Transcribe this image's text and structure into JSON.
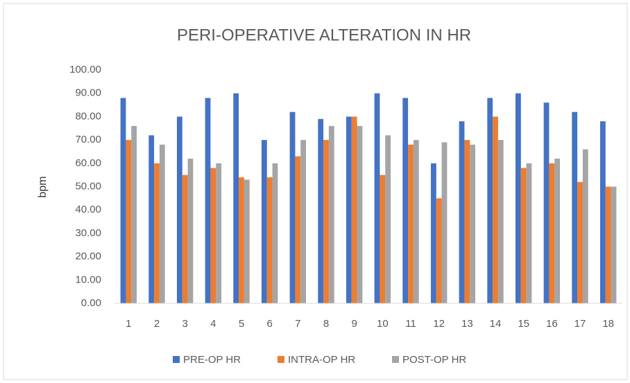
{
  "chart_data": {
    "type": "bar",
    "title": "PERI-OPERATIVE ALTERATION IN HR",
    "ylabel": "bpm",
    "categories": [
      "1",
      "2",
      "3",
      "4",
      "5",
      "6",
      "7",
      "8",
      "9",
      "10",
      "11",
      "12",
      "13",
      "14",
      "15",
      "16",
      "17",
      "18"
    ],
    "series": [
      {
        "name": "PRE-OP HR",
        "color": "#4472c4",
        "values": [
          88,
          72,
          80,
          88,
          90,
          70,
          82,
          79,
          80,
          90,
          88,
          60,
          78,
          88,
          90,
          86,
          82,
          78
        ]
      },
      {
        "name": "INTRA-OP HR",
        "color": "#ed7d31",
        "values": [
          70,
          60,
          55,
          58,
          54,
          54,
          63,
          70,
          80,
          55,
          68,
          45,
          70,
          80,
          58,
          60,
          52,
          50
        ]
      },
      {
        "name": "POST-OP HR",
        "color": "#a5a5a5",
        "values": [
          76,
          68,
          62,
          60,
          53,
          60,
          70,
          76,
          76,
          72,
          70,
          69,
          68,
          70,
          60,
          62,
          66,
          50
        ]
      }
    ],
    "ylim": [
      0,
      100
    ],
    "yticks": [
      {
        "value": 0,
        "label": "0.00"
      },
      {
        "value": 10,
        "label": "10.00"
      },
      {
        "value": 20,
        "label": "20.00"
      },
      {
        "value": 30,
        "label": "30.00"
      },
      {
        "value": 40,
        "label": "40.00"
      },
      {
        "value": 50,
        "label": "50.00"
      },
      {
        "value": 60,
        "label": "60.00"
      },
      {
        "value": 70,
        "label": "70.00"
      },
      {
        "value": 80,
        "label": "80.00"
      },
      {
        "value": 90,
        "label": "90.00"
      },
      {
        "value": 100,
        "label": "100.00"
      }
    ],
    "grid": false,
    "legend": "bottom"
  }
}
